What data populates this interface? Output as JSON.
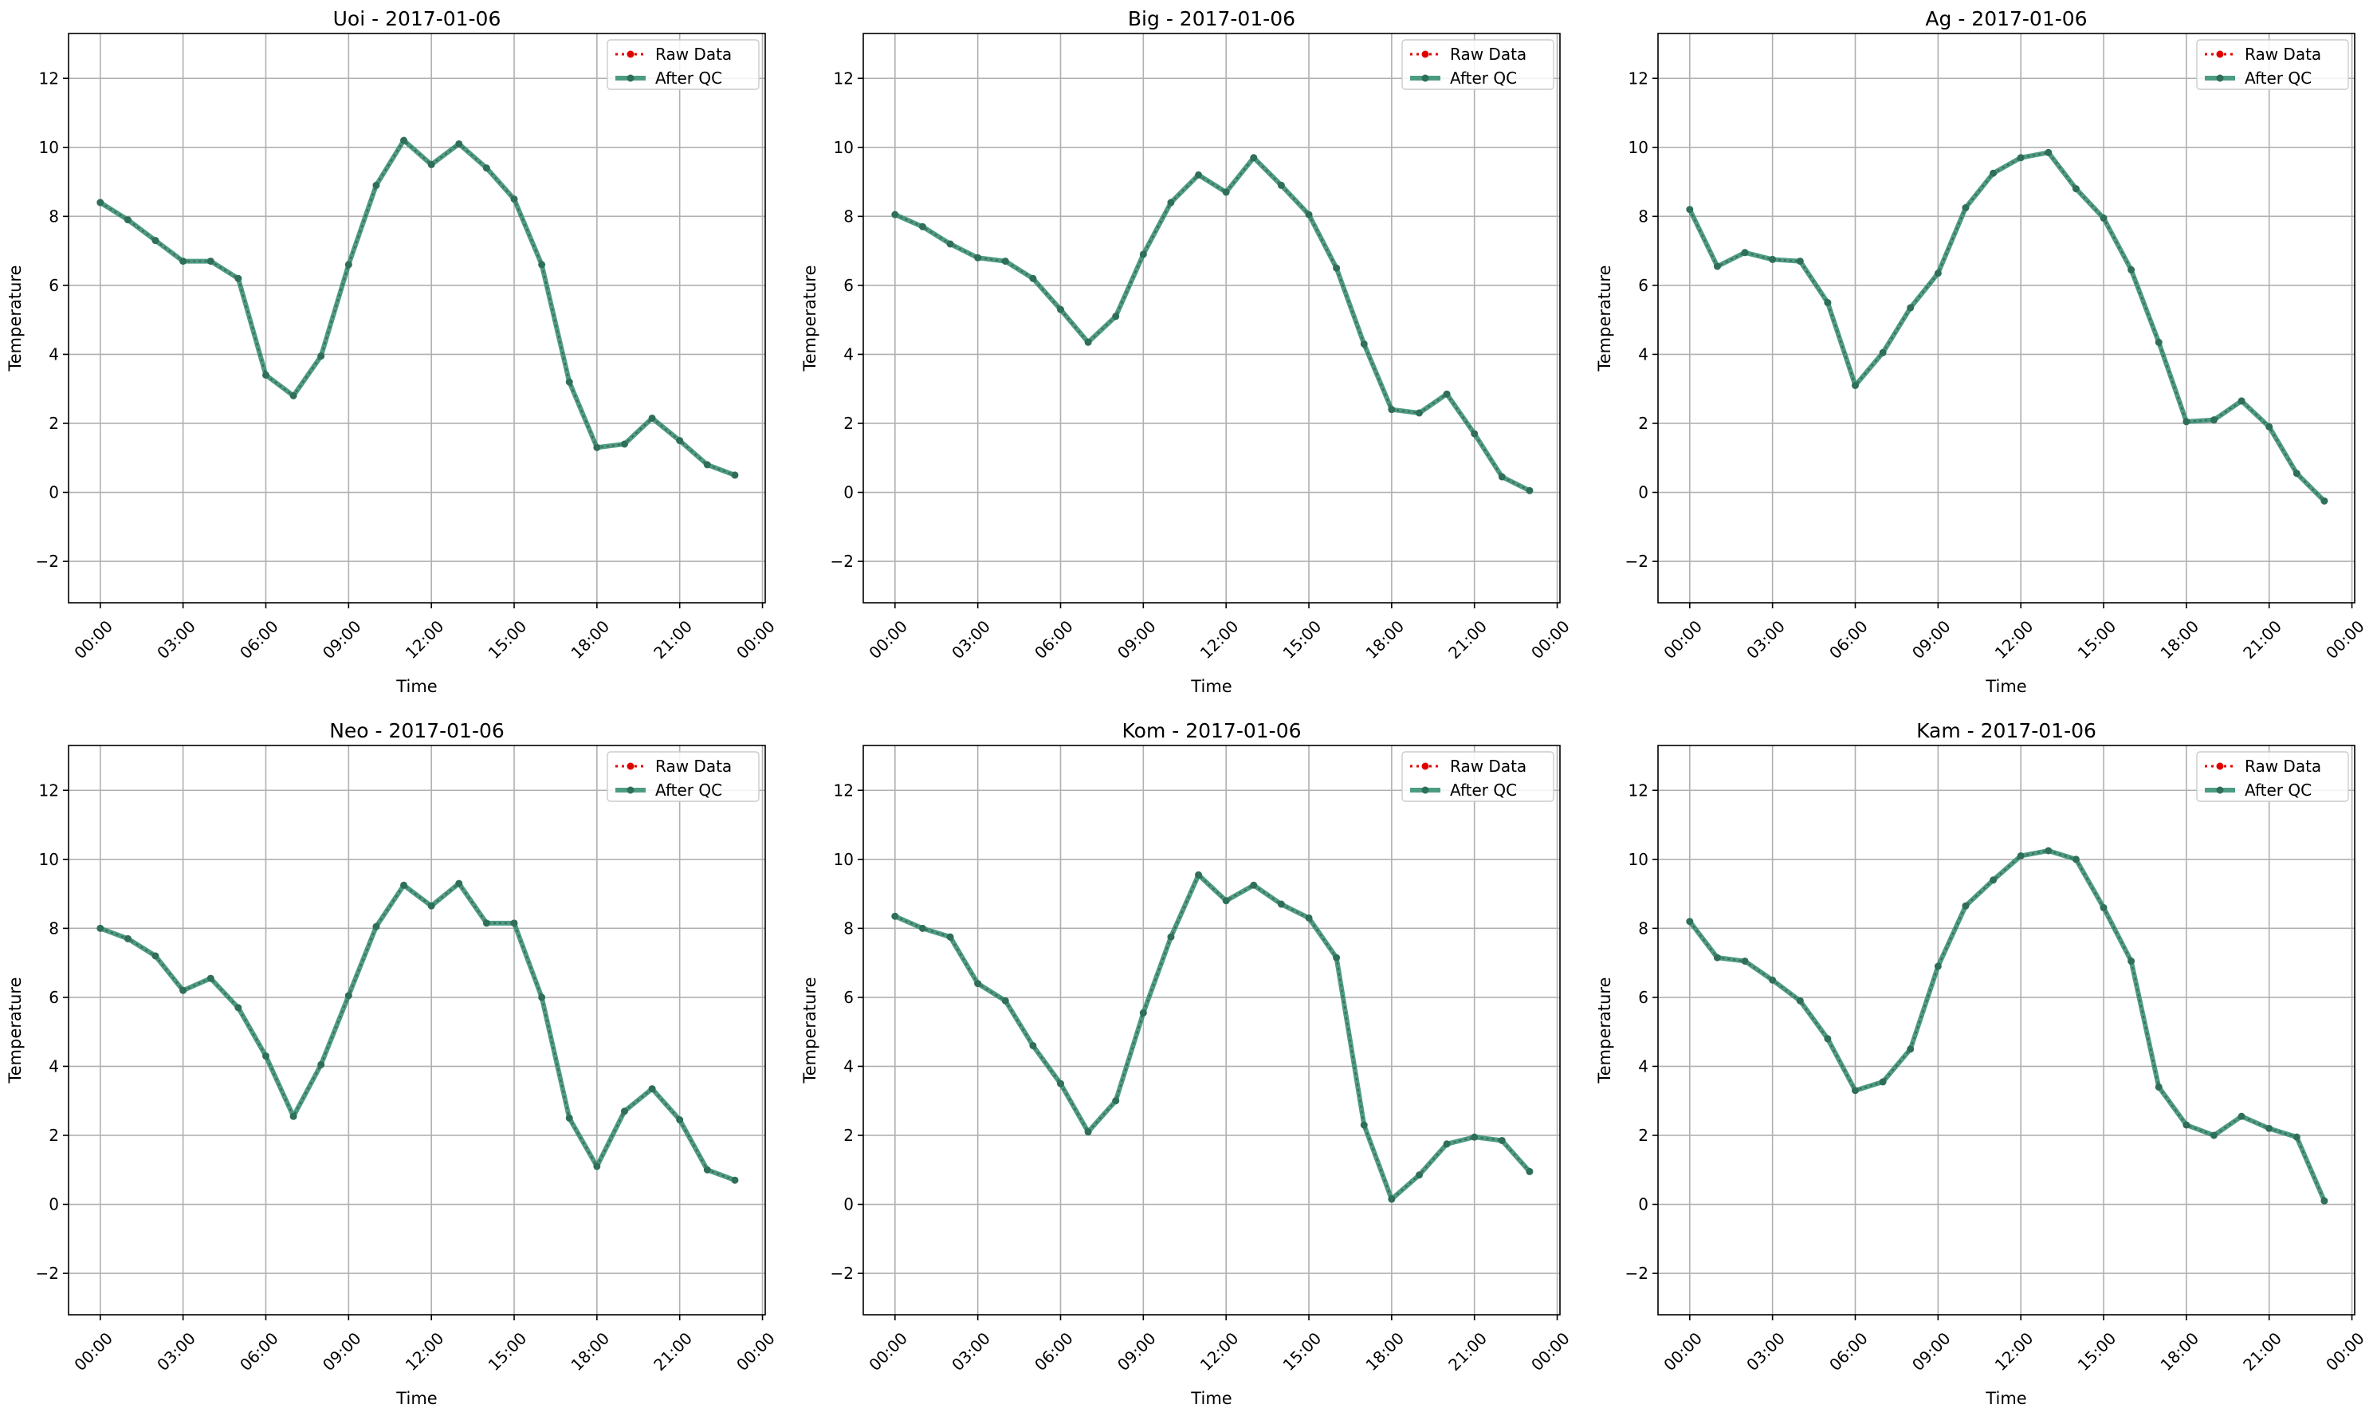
{
  "figure": {
    "x_tick_labels": [
      "00:00",
      "03:00",
      "06:00",
      "09:00",
      "12:00",
      "15:00",
      "18:00",
      "21:00",
      "00:00"
    ],
    "y_ticks": [
      -2,
      0,
      2,
      4,
      6,
      8,
      10,
      12
    ],
    "xlabel": "Time",
    "ylabel": "Temperature",
    "legend": {
      "raw": "Raw Data",
      "qc": "After QC"
    },
    "colors": {
      "raw": "#e00000",
      "qc": "#2e8b6e",
      "grid": "#b0b0b0"
    }
  },
  "chart_data": [
    {
      "type": "line",
      "title": "Uoi - 2017-01-06",
      "xlabel": "Time",
      "ylabel": "Temperature",
      "x_hours": [
        0,
        1,
        2,
        3,
        4,
        5,
        6,
        7,
        8,
        9,
        10,
        11,
        12,
        13,
        14,
        15,
        16,
        17,
        18,
        19,
        20,
        21,
        22,
        23
      ],
      "ylim": [
        -3.2,
        13.3
      ],
      "grid": true,
      "legend_position": "top-right",
      "series": [
        {
          "name": "Raw Data",
          "values": [
            8.4,
            7.9,
            7.3,
            6.7,
            6.7,
            6.2,
            3.4,
            2.8,
            3.95,
            6.6,
            8.9,
            10.2,
            9.5,
            10.1,
            9.4,
            8.5,
            6.6,
            3.2,
            1.3,
            1.4,
            2.15,
            1.5,
            0.8,
            0.5
          ]
        },
        {
          "name": "After QC",
          "values": [
            8.4,
            7.9,
            7.3,
            6.7,
            6.7,
            6.2,
            3.4,
            2.8,
            3.95,
            6.6,
            8.9,
            10.2,
            9.5,
            10.1,
            9.4,
            8.5,
            6.6,
            3.2,
            1.3,
            1.4,
            2.15,
            1.5,
            0.8,
            0.5
          ]
        }
      ]
    },
    {
      "type": "line",
      "title": "Big - 2017-01-06",
      "xlabel": "Time",
      "ylabel": "Temperature",
      "x_hours": [
        0,
        1,
        2,
        3,
        4,
        5,
        6,
        7,
        8,
        9,
        10,
        11,
        12,
        13,
        14,
        15,
        16,
        17,
        18,
        19,
        20,
        21,
        22,
        23
      ],
      "ylim": [
        -3.2,
        13.3
      ],
      "grid": true,
      "legend_position": "top-right",
      "series": [
        {
          "name": "Raw Data",
          "values": [
            8.05,
            7.7,
            7.2,
            6.8,
            6.7,
            6.2,
            5.3,
            4.35,
            5.1,
            6.9,
            8.4,
            9.2,
            8.7,
            9.7,
            8.9,
            8.05,
            6.5,
            4.3,
            2.4,
            2.3,
            2.85,
            1.7,
            0.45,
            0.05
          ]
        },
        {
          "name": "After QC",
          "values": [
            8.05,
            7.7,
            7.2,
            6.8,
            6.7,
            6.2,
            5.3,
            4.35,
            5.1,
            6.9,
            8.4,
            9.2,
            8.7,
            9.7,
            8.9,
            8.05,
            6.5,
            4.3,
            2.4,
            2.3,
            2.85,
            1.7,
            0.45,
            0.05
          ]
        }
      ]
    },
    {
      "type": "line",
      "title": "Ag - 2017-01-06",
      "xlabel": "Time",
      "ylabel": "Temperature",
      "x_hours": [
        0,
        1,
        2,
        3,
        4,
        5,
        6,
        7,
        8,
        9,
        10,
        11,
        12,
        13,
        14,
        15,
        16,
        17,
        18,
        19,
        20,
        21,
        22,
        23
      ],
      "ylim": [
        -3.2,
        13.3
      ],
      "grid": true,
      "legend_position": "top-right",
      "series": [
        {
          "name": "Raw Data",
          "values": [
            8.2,
            6.55,
            6.95,
            6.75,
            6.7,
            5.5,
            3.1,
            4.05,
            5.35,
            6.35,
            8.25,
            9.25,
            9.7,
            9.85,
            8.8,
            7.95,
            6.45,
            4.35,
            2.05,
            2.1,
            2.65,
            1.9,
            0.55,
            -0.25
          ]
        },
        {
          "name": "After QC",
          "values": [
            8.2,
            6.55,
            6.95,
            6.75,
            6.7,
            5.5,
            3.1,
            4.05,
            5.35,
            6.35,
            8.25,
            9.25,
            9.7,
            9.85,
            8.8,
            7.95,
            6.45,
            4.35,
            2.05,
            2.1,
            2.65,
            1.9,
            0.55,
            -0.25
          ]
        }
      ]
    },
    {
      "type": "line",
      "title": "Neo - 2017-01-06",
      "xlabel": "Time",
      "ylabel": "Temperature",
      "x_hours": [
        0,
        1,
        2,
        3,
        4,
        5,
        6,
        7,
        8,
        9,
        10,
        11,
        12,
        13,
        14,
        15,
        16,
        17,
        18,
        19,
        20,
        21,
        22,
        23
      ],
      "ylim": [
        -3.2,
        13.3
      ],
      "grid": true,
      "legend_position": "top-right",
      "series": [
        {
          "name": "Raw Data",
          "values": [
            8.0,
            7.7,
            7.2,
            6.2,
            6.55,
            5.7,
            4.3,
            2.55,
            4.05,
            6.05,
            8.05,
            9.25,
            8.65,
            9.3,
            8.15,
            8.15,
            6.0,
            2.5,
            1.1,
            2.7,
            3.35,
            2.45,
            1.0,
            0.7
          ]
        },
        {
          "name": "After QC",
          "values": [
            8.0,
            7.7,
            7.2,
            6.2,
            6.55,
            5.7,
            4.3,
            2.55,
            4.05,
            6.05,
            8.05,
            9.25,
            8.65,
            9.3,
            8.15,
            8.15,
            6.0,
            2.5,
            1.1,
            2.7,
            3.35,
            2.45,
            1.0,
            0.7
          ]
        }
      ]
    },
    {
      "type": "line",
      "title": "Kom - 2017-01-06",
      "xlabel": "Time",
      "ylabel": "Temperature",
      "x_hours": [
        0,
        1,
        2,
        3,
        4,
        5,
        6,
        7,
        8,
        9,
        10,
        11,
        12,
        13,
        14,
        15,
        16,
        17,
        18,
        19,
        20,
        21,
        22,
        23
      ],
      "ylim": [
        -3.2,
        13.3
      ],
      "grid": true,
      "legend_position": "top-right",
      "series": [
        {
          "name": "Raw Data",
          "values": [
            8.35,
            8.0,
            7.75,
            6.4,
            5.9,
            4.6,
            3.5,
            2.1,
            3.0,
            5.55,
            7.75,
            9.55,
            8.8,
            9.25,
            8.7,
            8.3,
            7.15,
            2.3,
            0.15,
            0.85,
            1.75,
            1.95,
            1.85,
            0.95
          ]
        },
        {
          "name": "After QC",
          "values": [
            8.35,
            8.0,
            7.75,
            6.4,
            5.9,
            4.6,
            3.5,
            2.1,
            3.0,
            5.55,
            7.75,
            9.55,
            8.8,
            9.25,
            8.7,
            8.3,
            7.15,
            2.3,
            0.15,
            0.85,
            1.75,
            1.95,
            1.85,
            0.95
          ]
        }
      ]
    },
    {
      "type": "line",
      "title": "Kam - 2017-01-06",
      "xlabel": "Time",
      "ylabel": "Temperature",
      "x_hours": [
        0,
        1,
        2,
        3,
        4,
        5,
        6,
        7,
        8,
        9,
        10,
        11,
        12,
        13,
        14,
        15,
        16,
        17,
        18,
        19,
        20,
        21,
        22,
        23
      ],
      "ylim": [
        -3.2,
        13.3
      ],
      "grid": true,
      "legend_position": "top-right",
      "series": [
        {
          "name": "Raw Data",
          "values": [
            8.2,
            7.15,
            7.05,
            6.5,
            5.9,
            4.8,
            3.3,
            3.55,
            4.5,
            6.9,
            8.65,
            9.4,
            10.1,
            10.25,
            10.0,
            8.6,
            7.05,
            3.4,
            2.3,
            2.0,
            2.55,
            2.2,
            1.95,
            0.1
          ]
        },
        {
          "name": "After QC",
          "values": [
            8.2,
            7.15,
            7.05,
            6.5,
            5.9,
            4.8,
            3.3,
            3.55,
            4.5,
            6.9,
            8.65,
            9.4,
            10.1,
            10.25,
            10.0,
            8.6,
            7.05,
            3.4,
            2.3,
            2.0,
            2.55,
            2.2,
            1.95,
            0.1
          ]
        }
      ]
    }
  ]
}
